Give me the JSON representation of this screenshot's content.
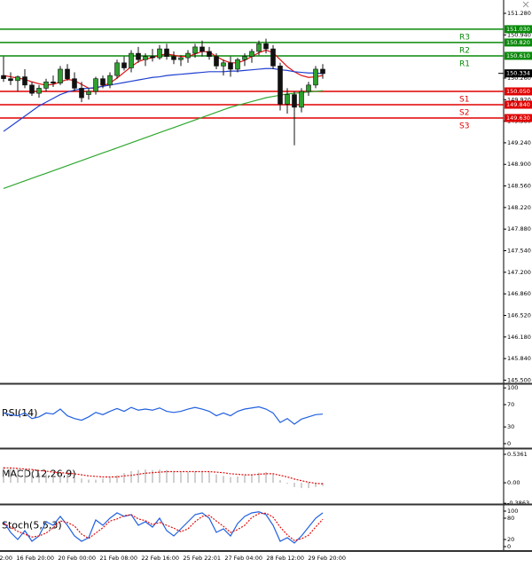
{
  "chart_data": [
    {
      "type": "candlestick",
      "ylim": [
        145.45,
        151.49
      ],
      "yticks": [
        {
          "value": 151.28,
          "label": "151.280"
        },
        {
          "value": 150.94,
          "label": "150.940"
        },
        {
          "value": 150.26,
          "label": "150.260"
        },
        {
          "value": 149.92,
          "label": "149.920"
        },
        {
          "value": 149.58,
          "label": "149.580"
        },
        {
          "value": 149.24,
          "label": "149.240"
        },
        {
          "value": 148.9,
          "label": "148.900"
        },
        {
          "value": 148.56,
          "label": "148.560"
        },
        {
          "value": 148.22,
          "label": "148.220"
        },
        {
          "value": 147.88,
          "label": "147.880"
        },
        {
          "value": 147.54,
          "label": "147.540"
        },
        {
          "value": 147.2,
          "label": "147.200"
        },
        {
          "value": 146.86,
          "label": "146.860"
        },
        {
          "value": 146.52,
          "label": "146.520"
        },
        {
          "value": 146.18,
          "label": "146.180"
        },
        {
          "value": 145.84,
          "label": "145.840"
        },
        {
          "value": 145.5,
          "label": "145.500"
        }
      ],
      "up_color": "#2ea02e",
      "down_color": "#111111",
      "open": [
        150.3,
        150.25,
        150.22,
        150.28,
        150.15,
        150.02,
        150.1,
        150.2,
        150.18,
        150.4,
        150.25,
        150.1,
        150.0,
        150.05,
        150.25,
        150.15,
        150.3,
        150.5,
        150.42,
        150.65,
        150.55,
        150.6,
        150.58,
        150.72,
        150.6,
        150.55,
        150.58,
        150.65,
        150.75,
        150.68,
        150.6,
        150.45,
        150.5,
        150.4,
        150.55,
        150.6,
        150.68,
        150.8,
        150.72,
        150.45,
        149.85,
        150.0,
        149.8,
        150.05,
        150.15,
        150.4
      ],
      "high": [
        150.6,
        150.35,
        150.3,
        150.4,
        150.2,
        150.15,
        150.25,
        150.3,
        150.45,
        150.48,
        150.35,
        150.2,
        150.1,
        150.28,
        150.3,
        150.35,
        150.55,
        150.6,
        150.7,
        150.75,
        150.65,
        150.72,
        150.78,
        150.8,
        150.68,
        150.62,
        150.7,
        150.8,
        150.85,
        150.75,
        150.65,
        150.55,
        150.6,
        150.58,
        150.65,
        150.72,
        150.85,
        150.88,
        150.78,
        150.5,
        150.1,
        150.05,
        150.1,
        150.2,
        150.45,
        150.48
      ],
      "low": [
        150.2,
        150.15,
        150.05,
        150.1,
        149.98,
        149.95,
        150.05,
        150.12,
        150.15,
        150.22,
        150.05,
        149.88,
        149.92,
        150.0,
        150.1,
        150.1,
        150.25,
        150.38,
        150.35,
        150.5,
        150.45,
        150.52,
        150.55,
        150.55,
        150.48,
        150.45,
        150.5,
        150.58,
        150.6,
        150.55,
        150.4,
        150.3,
        150.28,
        150.35,
        150.45,
        150.5,
        150.62,
        150.65,
        150.4,
        149.75,
        149.7,
        149.2,
        149.72,
        149.98,
        150.1,
        150.25
      ],
      "close": [
        150.25,
        150.22,
        150.28,
        150.15,
        150.02,
        150.1,
        150.2,
        150.18,
        150.4,
        150.25,
        150.1,
        149.95,
        150.05,
        150.25,
        150.15,
        150.3,
        150.5,
        150.42,
        150.65,
        150.55,
        150.6,
        150.58,
        150.72,
        150.6,
        150.55,
        150.58,
        150.65,
        150.75,
        150.68,
        150.6,
        150.45,
        150.5,
        150.4,
        150.55,
        150.6,
        150.68,
        150.8,
        150.72,
        150.45,
        149.85,
        150.0,
        149.8,
        150.05,
        150.15,
        150.4,
        150.33
      ],
      "series": [
        {
          "color": "#e01010",
          "values": [
            150.3,
            150.28,
            150.26,
            150.24,
            150.2,
            150.17,
            150.15,
            150.16,
            150.2,
            150.24,
            150.22,
            150.16,
            150.1,
            150.1,
            150.14,
            150.18,
            150.26,
            150.35,
            150.44,
            150.52,
            150.56,
            150.58,
            150.62,
            150.64,
            150.62,
            150.6,
            150.6,
            150.64,
            150.68,
            150.67,
            150.6,
            150.54,
            150.5,
            150.5,
            150.54,
            150.6,
            150.66,
            150.7,
            150.66,
            150.55,
            150.44,
            150.36,
            150.3,
            150.27,
            150.28,
            150.3
          ]
        },
        {
          "color": "#2040d0",
          "values": [
            149.42,
            149.5,
            149.58,
            149.66,
            149.74,
            149.82,
            149.88,
            149.94,
            150.0,
            150.04,
            150.07,
            150.09,
            150.1,
            150.11,
            150.13,
            150.15,
            150.17,
            150.19,
            150.21,
            150.23,
            150.25,
            150.27,
            150.28,
            150.3,
            150.31,
            150.32,
            150.33,
            150.34,
            150.35,
            150.36,
            150.36,
            150.36,
            150.37,
            150.37,
            150.38,
            150.39,
            150.4,
            150.41,
            150.41,
            150.39,
            150.38,
            150.36,
            150.35,
            150.34,
            150.34,
            150.33
          ]
        },
        {
          "color": "#30a830",
          "values": [
            148.52,
            148.56,
            148.6,
            148.64,
            148.68,
            148.72,
            148.76,
            148.8,
            148.84,
            148.88,
            148.92,
            148.96,
            149.0,
            149.04,
            149.08,
            149.12,
            149.16,
            149.2,
            149.24,
            149.28,
            149.32,
            149.36,
            149.4,
            149.44,
            149.48,
            149.52,
            149.56,
            149.6,
            149.64,
            149.68,
            149.72,
            149.76,
            149.8,
            149.83,
            149.86,
            149.89,
            149.92,
            149.95,
            149.97,
            149.99,
            150.01,
            150.02,
            150.03,
            150.04,
            150.05,
            150.06
          ]
        }
      ],
      "levels": [
        {
          "name": "R3",
          "value": 151.03,
          "label": "151.030",
          "color": "#0a8a0a"
        },
        {
          "name": "R2",
          "value": 150.82,
          "label": "150.820",
          "color": "#0a8a0a"
        },
        {
          "name": "R1",
          "value": 150.61,
          "label": "150.610",
          "color": "#0a8a0a"
        },
        {
          "name": "S1",
          "value": 150.05,
          "label": "150.050",
          "color": "#e00000"
        },
        {
          "name": "S2",
          "value": 149.84,
          "label": "149.840",
          "color": "#e00000"
        },
        {
          "name": "S3",
          "value": 149.63,
          "label": "149.630",
          "color": "#e00000"
        }
      ],
      "last_price": {
        "value": 150.334,
        "label": "150.334"
      }
    },
    {
      "type": "line",
      "title": "RSI(14)",
      "ylim": [
        -8,
        105
      ],
      "yticks": [
        100,
        70,
        30,
        0
      ],
      "series": [
        {
          "color": "#2060e0",
          "values": [
            55,
            52,
            50,
            55,
            45,
            48,
            55,
            53,
            62,
            50,
            45,
            42,
            48,
            56,
            52,
            58,
            63,
            58,
            65,
            60,
            62,
            60,
            64,
            58,
            56,
            58,
            62,
            65,
            62,
            58,
            50,
            55,
            50,
            58,
            62,
            64,
            66,
            62,
            55,
            38,
            45,
            35,
            44,
            48,
            52,
            53
          ]
        }
      ]
    },
    {
      "type": "macd",
      "title": "MACD(12,26,9)",
      "ylim": [
        -0.4,
        0.62
      ],
      "yticks": [
        0.5361,
        {
          "value": 0,
          "label": "0.00"
        },
        -0.3863
      ],
      "series": [
        {
          "kind": "bar",
          "color": "#a0a0a0",
          "values": [
            0.3,
            0.28,
            0.26,
            0.24,
            0.2,
            0.18,
            0.16,
            0.15,
            0.16,
            0.15,
            0.12,
            0.08,
            0.06,
            0.06,
            0.08,
            0.1,
            0.14,
            0.18,
            0.22,
            0.24,
            0.25,
            0.24,
            0.25,
            0.24,
            0.22,
            0.2,
            0.2,
            0.21,
            0.22,
            0.2,
            0.16,
            0.13,
            0.11,
            0.12,
            0.14,
            0.16,
            0.19,
            0.2,
            0.16,
            0.05,
            -0.02,
            -0.08,
            -0.1,
            -0.1,
            -0.08,
            -0.06
          ]
        },
        {
          "kind": "line",
          "dashed": true,
          "color": "#e01010",
          "values": [
            0.28,
            0.28,
            0.27,
            0.26,
            0.25,
            0.23,
            0.22,
            0.2,
            0.19,
            0.18,
            0.17,
            0.15,
            0.13,
            0.12,
            0.11,
            0.11,
            0.11,
            0.13,
            0.14,
            0.16,
            0.18,
            0.19,
            0.2,
            0.21,
            0.21,
            0.21,
            0.21,
            0.21,
            0.21,
            0.21,
            0.2,
            0.19,
            0.17,
            0.16,
            0.15,
            0.15,
            0.16,
            0.17,
            0.17,
            0.14,
            0.11,
            0.07,
            0.04,
            0.01,
            -0.01,
            -0.02
          ]
        }
      ]
    },
    {
      "type": "line",
      "title": "Stoch(5,5,3)",
      "ylim": [
        -10,
        115
      ],
      "yticks": [
        100,
        80,
        20,
        0
      ],
      "series": [
        {
          "color": "#2060e0",
          "values": [
            70,
            40,
            20,
            45,
            15,
            30,
            70,
            60,
            85,
            60,
            30,
            15,
            25,
            75,
            60,
            80,
            95,
            85,
            90,
            60,
            70,
            55,
            80,
            45,
            30,
            50,
            70,
            90,
            95,
            80,
            40,
            50,
            30,
            65,
            85,
            95,
            98,
            90,
            60,
            15,
            25,
            10,
            30,
            55,
            80,
            95
          ]
        },
        {
          "color": "#e01010",
          "dashed": true,
          "values": [
            65,
            55,
            43,
            35,
            27,
            30,
            38,
            53,
            72,
            68,
            58,
            35,
            23,
            38,
            53,
            72,
            78,
            87,
            90,
            78,
            73,
            62,
            68,
            60,
            52,
            42,
            50,
            70,
            85,
            88,
            72,
            57,
            40,
            48,
            60,
            82,
            93,
            94,
            83,
            55,
            33,
            17,
            22,
            32,
            55,
            77
          ]
        }
      ],
      "xtick_labels": [
        "2:00",
        "16 Feb 20:00",
        "20 Feb 00:00",
        "21 Feb 08:00",
        "22 Feb 16:00",
        "25 Feb 22:01",
        "27 Feb 04:00",
        "28 Feb 12:00",
        "29 Feb 20:00"
      ]
    }
  ]
}
